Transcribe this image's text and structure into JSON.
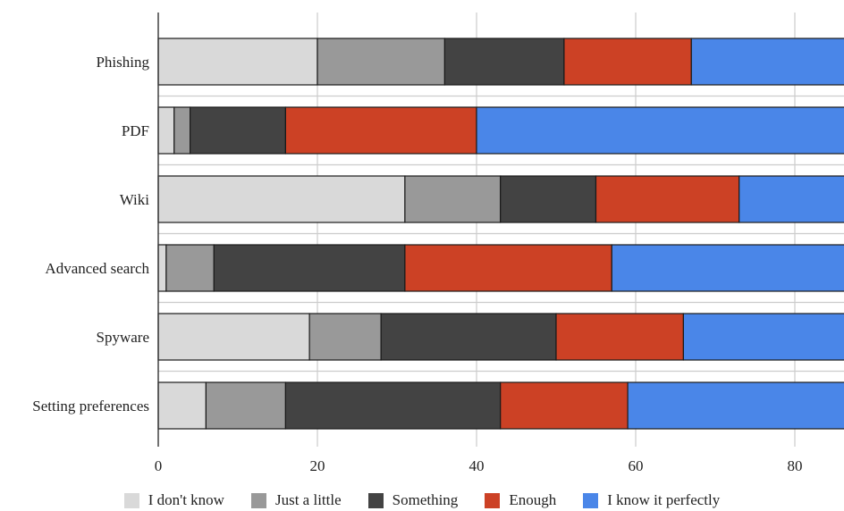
{
  "chart_data": {
    "type": "bar",
    "orientation": "horizontal",
    "stacked": true,
    "title": "",
    "xlabel": "",
    "ylabel": "",
    "categories": [
      "Phishing",
      "PDF",
      "Wiki",
      "Advanced search",
      "Spyware",
      "Setting preferences"
    ],
    "series": [
      {
        "name": "I don't know",
        "color": "#d9d9d9",
        "values": [
          20,
          2,
          31,
          1,
          19,
          6
        ]
      },
      {
        "name": "Just a little",
        "color": "#999999",
        "values": [
          16,
          2,
          12,
          6,
          9,
          10
        ]
      },
      {
        "name": "Something",
        "color": "#434343",
        "values": [
          15,
          12,
          12,
          24,
          22,
          27
        ]
      },
      {
        "name": "Enough",
        "color": "#cc4125",
        "values": [
          16,
          24,
          18,
          26,
          16,
          16
        ]
      },
      {
        "name": "I know it perfectly",
        "color": "#4a86e8",
        "values": [
          33,
          60,
          27,
          43,
          34,
          41
        ]
      }
    ],
    "xlim": [
      0,
      100
    ],
    "xticks": [
      "0",
      "20",
      "40",
      "60",
      "80"
    ],
    "grid": true,
    "legend_position": "bottom"
  }
}
